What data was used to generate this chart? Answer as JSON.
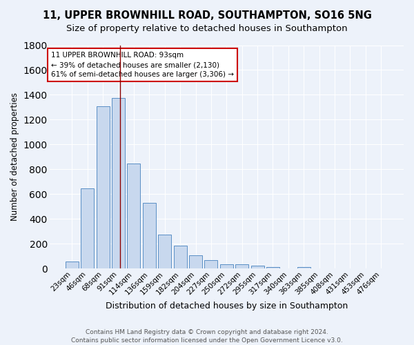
{
  "title": "11, UPPER BROWNHILL ROAD, SOUTHAMPTON, SO16 5NG",
  "subtitle": "Size of property relative to detached houses in Southampton",
  "xlabel": "Distribution of detached houses by size in Southampton",
  "ylabel": "Number of detached properties",
  "categories": [
    "23sqm",
    "46sqm",
    "68sqm",
    "91sqm",
    "114sqm",
    "136sqm",
    "159sqm",
    "182sqm",
    "204sqm",
    "227sqm",
    "250sqm",
    "272sqm",
    "295sqm",
    "317sqm",
    "340sqm",
    "363sqm",
    "385sqm",
    "408sqm",
    "431sqm",
    "453sqm",
    "476sqm"
  ],
  "values": [
    55,
    645,
    1310,
    1375,
    845,
    530,
    275,
    185,
    105,
    65,
    35,
    35,
    25,
    10,
    0,
    10,
    0,
    0,
    0,
    0,
    0
  ],
  "bar_color": "#c8d8ee",
  "bar_edge_color": "#5a8fc5",
  "background_color": "#edf2fa",
  "grid_color": "#ffffff",
  "vline_color": "#8b0000",
  "annotation_text": "11 UPPER BROWNHILL ROAD: 93sqm\n← 39% of detached houses are smaller (2,130)\n61% of semi-detached houses are larger (3,306) →",
  "annotation_box_color": "#ffffff",
  "annotation_box_edge_color": "#cc0000",
  "footer": "Contains HM Land Registry data © Crown copyright and database right 2024.\nContains public sector information licensed under the Open Government Licence v3.0.",
  "ylim": [
    0,
    1800
  ],
  "title_fontsize": 10.5,
  "subtitle_fontsize": 9.5,
  "xlabel_fontsize": 9,
  "ylabel_fontsize": 8.5,
  "tick_fontsize": 7.5,
  "annotation_fontsize": 7.5,
  "footer_fontsize": 6.5
}
